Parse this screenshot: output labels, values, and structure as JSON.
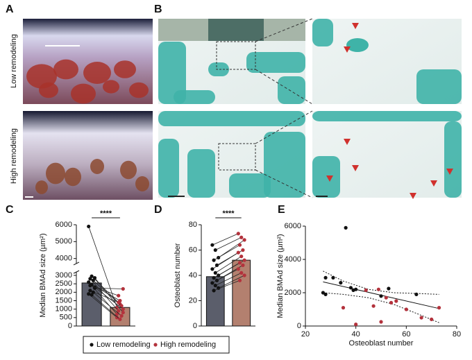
{
  "figure": {
    "panel_labels": [
      "A",
      "B",
      "C",
      "D",
      "E"
    ],
    "row_labels": [
      "Low remodeling",
      "High remodeling"
    ]
  },
  "chart_data": [
    {
      "type": "paired_bar",
      "ylabel": "Median BMAd size  (µm²)",
      "ylim": [
        0,
        6000
      ],
      "yticks": [
        0,
        500,
        1000,
        1500,
        2000,
        2500,
        3000,
        4000,
        5000,
        6000
      ],
      "axis_break": [
        3200,
        3700
      ],
      "significance": "****",
      "series": [
        {
          "name": "Low remodeling",
          "color": "#111111",
          "bar_color": "#5b5e6b",
          "bar_value": 2550,
          "values": [
            5900,
            2950,
            2850,
            2800,
            2700,
            2600,
            2450,
            2300,
            2100,
            2000,
            1900,
            1850,
            2250,
            2400
          ]
        },
        {
          "name": "High remodeling",
          "color": "#b3323c",
          "bar_color": "#b3806f",
          "bar_value": 1100,
          "values": [
            1100,
            1300,
            800,
            900,
            1200,
            700,
            1500,
            1000,
            1400,
            600,
            500,
            400,
            2200,
            1800
          ]
        }
      ]
    },
    {
      "type": "paired_bar",
      "ylabel": "Osteoblast number",
      "ylim": [
        0,
        80
      ],
      "yticks": [
        0,
        20,
        40,
        60,
        80
      ],
      "significance": "****",
      "series": [
        {
          "name": "Low remodeling",
          "color": "#111111",
          "bar_color": "#5b5e6b",
          "bar_value": 39,
          "values": [
            64,
            60,
            54,
            52,
            48,
            45,
            42,
            40,
            38,
            36,
            34,
            32,
            30,
            28
          ]
        },
        {
          "name": "High remodeling",
          "color": "#b3323c",
          "bar_color": "#b3806f",
          "bar_value": 52,
          "values": [
            73,
            70,
            68,
            64,
            60,
            58,
            55,
            52,
            50,
            48,
            45,
            42,
            40,
            36
          ]
        }
      ]
    },
    {
      "type": "scatter",
      "xlabel": "Osteoblast number",
      "ylabel": "Median BMAd size  (µm²)",
      "xlim": [
        20,
        80
      ],
      "xticks": [
        20,
        40,
        60,
        80
      ],
      "ylim": [
        0,
        6000
      ],
      "yticks": [
        0,
        2000,
        4000,
        6000
      ],
      "series": [
        {
          "name": "Low remodeling",
          "color": "#111111",
          "x": [
            27,
            28,
            28,
            31,
            34,
            36,
            38,
            39,
            40,
            50,
            53,
            64
          ],
          "values": [
            2000,
            1900,
            2900,
            2900,
            2600,
            5900,
            2300,
            2150,
            2200,
            1800,
            2250,
            1900
          ]
        },
        {
          "name": "High remodeling",
          "color": "#b3323c",
          "x": [
            35,
            40,
            44,
            47,
            49,
            50,
            52,
            54,
            56,
            60,
            66,
            70,
            73
          ],
          "values": [
            1100,
            100,
            2150,
            1200,
            2200,
            250,
            1700,
            1400,
            1500,
            1000,
            500,
            400,
            1100
          ]
        }
      ],
      "fit": {
        "x": [
          27,
          73
        ],
        "values": [
          2650,
          1050
        ]
      },
      "ci_upper": {
        "x": [
          27,
          35,
          45,
          55,
          65,
          73
        ],
        "values": [
          3300,
          2700,
          2200,
          2000,
          1950,
          1900
        ]
      },
      "ci_lower": {
        "x": [
          27,
          35,
          45,
          55,
          65,
          73
        ],
        "values": [
          2000,
          1900,
          1700,
          1300,
          700,
          200
        ]
      }
    }
  ]
}
